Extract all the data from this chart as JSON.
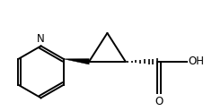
{
  "bg_color": "#ffffff",
  "line_color": "#000000",
  "line_width": 1.4,
  "figsize": [
    2.36,
    1.24
  ],
  "dpi": 100,
  "text_OH": "OH",
  "text_O": "O",
  "text_N": "N",
  "font_size": 8.5
}
